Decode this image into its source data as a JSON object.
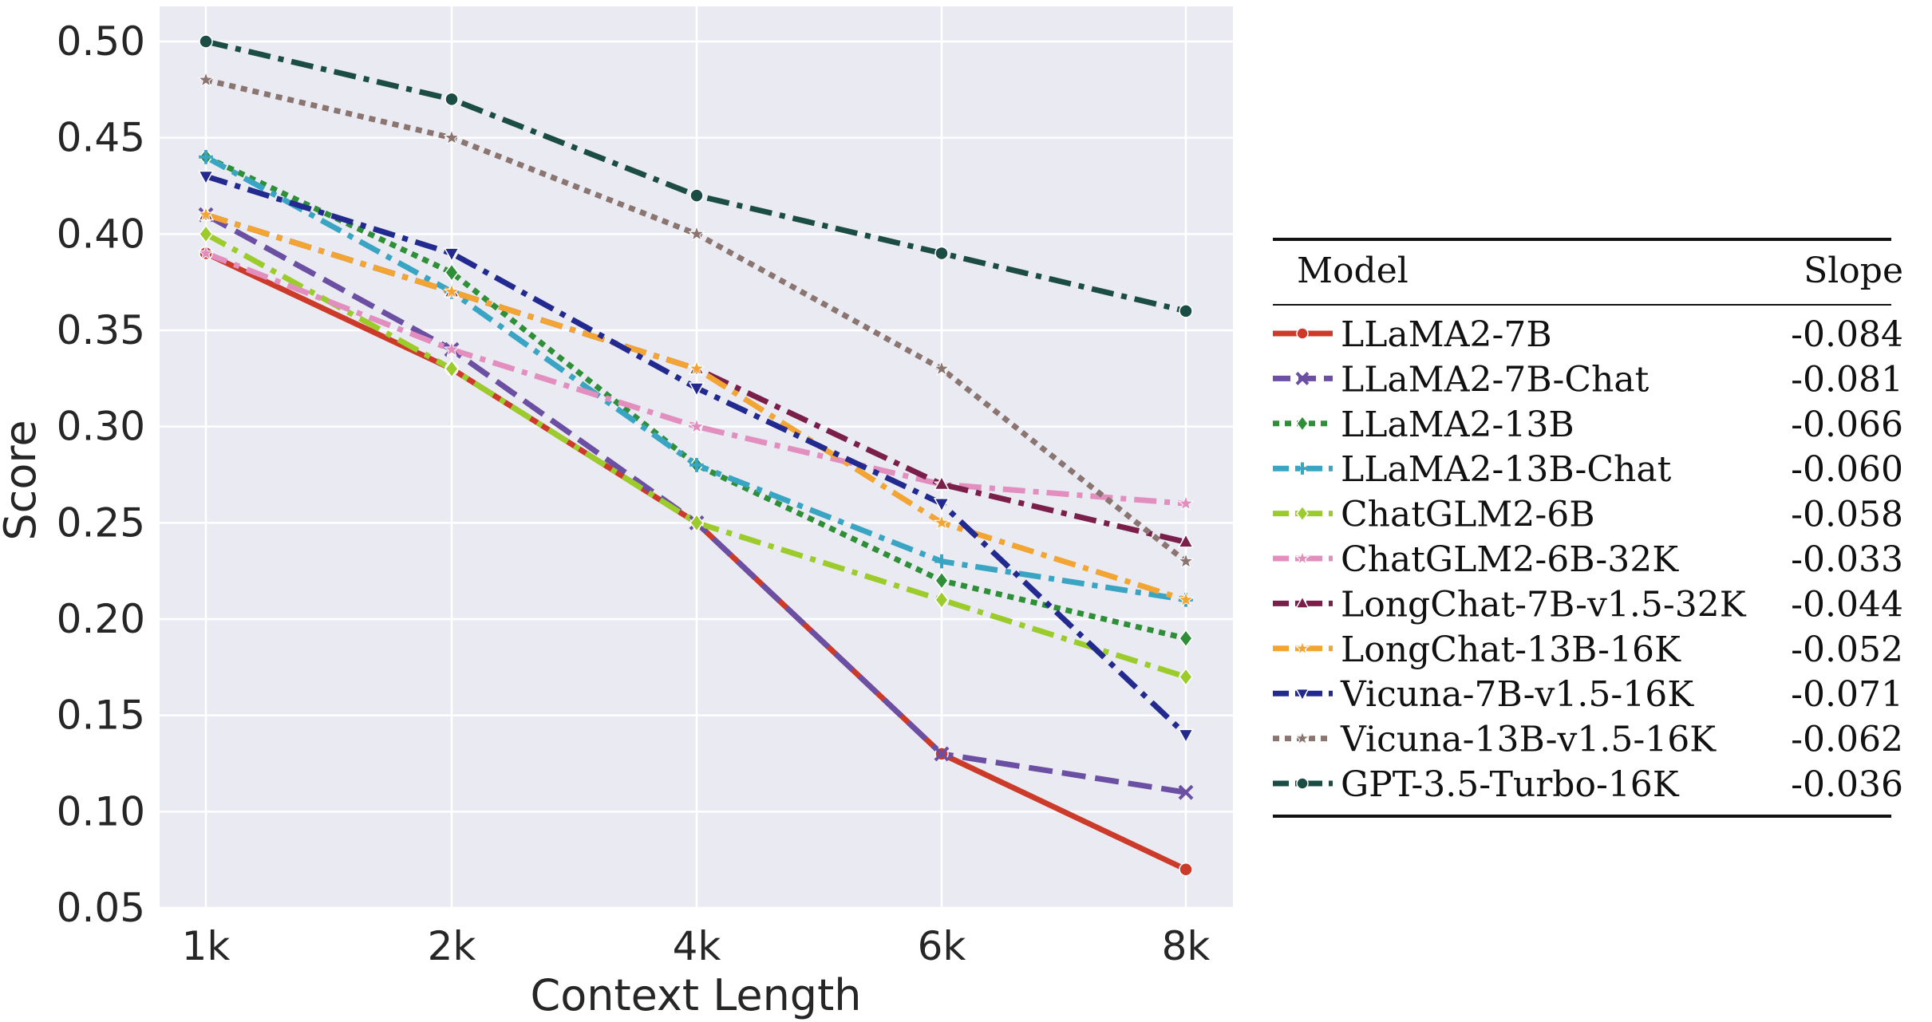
{
  "chart_data": {
    "type": "line",
    "xlabel": "Context Length",
    "ylabel": "Score",
    "categories": [
      "1k",
      "2k",
      "4k",
      "6k",
      "8k"
    ],
    "ylim": [
      0.05,
      0.52
    ],
    "yticks": [
      "0.05",
      "0.10",
      "0.15",
      "0.20",
      "0.25",
      "0.30",
      "0.35",
      "0.40",
      "0.45",
      "0.50"
    ],
    "grid": true,
    "legend": {
      "position": "right",
      "header_model": "Model",
      "header_slope": "Slope"
    },
    "series": [
      {
        "name": "LLaMA2-7B",
        "slope": "-0.084",
        "color": "#cc3a2a",
        "dash": "solid",
        "marker": "circle",
        "values": [
          0.39,
          0.33,
          0.25,
          0.13,
          0.07
        ]
      },
      {
        "name": "LLaMA2-7B-Chat",
        "slope": "-0.081",
        "color": "#6a4fa3",
        "dash": "dash",
        "marker": "x",
        "values": [
          0.41,
          0.34,
          0.25,
          0.13,
          0.11
        ]
      },
      {
        "name": "LLaMA2-13B",
        "slope": "-0.066",
        "color": "#2e8f38",
        "dash": "dot",
        "marker": "diamond",
        "values": [
          0.44,
          0.38,
          0.28,
          0.22,
          0.19
        ]
      },
      {
        "name": "LLaMA2-13B-Chat",
        "slope": "-0.060",
        "color": "#3aa5c2",
        "dash": "dashdot",
        "marker": "plus",
        "values": [
          0.44,
          0.37,
          0.28,
          0.23,
          0.21
        ]
      },
      {
        "name": "ChatGLM2-6B",
        "slope": "-0.058",
        "color": "#9ccc2c",
        "dash": "dashdot",
        "marker": "diamond",
        "values": [
          0.4,
          0.33,
          0.25,
          0.21,
          0.17
        ]
      },
      {
        "name": "ChatGLM2-6B-32K",
        "slope": "-0.033",
        "color": "#e28fc0",
        "dash": "dashdot",
        "marker": "star",
        "values": [
          0.39,
          0.34,
          0.3,
          0.27,
          0.26
        ]
      },
      {
        "name": "LongChat-7B-v1.5-32K",
        "slope": "-0.044",
        "color": "#7a1f4a",
        "dash": "dashdot",
        "marker": "triangle-up",
        "values": [
          0.41,
          0.37,
          0.33,
          0.27,
          0.24
        ]
      },
      {
        "name": "LongChat-13B-16K",
        "slope": "-0.052",
        "color": "#f2a533",
        "dash": "dashdot",
        "marker": "star",
        "values": [
          0.41,
          0.37,
          0.33,
          0.25,
          0.21
        ]
      },
      {
        "name": "Vicuna-7B-v1.5-16K",
        "slope": "-0.071",
        "color": "#232a8f",
        "dash": "dashdot",
        "marker": "triangle-down",
        "values": [
          0.43,
          0.39,
          0.32,
          0.26,
          0.14
        ]
      },
      {
        "name": "Vicuna-13B-v1.5-16K",
        "slope": "-0.062",
        "color": "#8a7570",
        "dash": "dot",
        "marker": "star",
        "values": [
          0.48,
          0.45,
          0.4,
          0.33,
          0.23
        ]
      },
      {
        "name": "GPT-3.5-Turbo-16K",
        "slope": "-0.036",
        "color": "#1b4d45",
        "dash": "dashdot",
        "marker": "circle",
        "values": [
          0.5,
          0.47,
          0.42,
          0.39,
          0.36
        ]
      }
    ]
  }
}
